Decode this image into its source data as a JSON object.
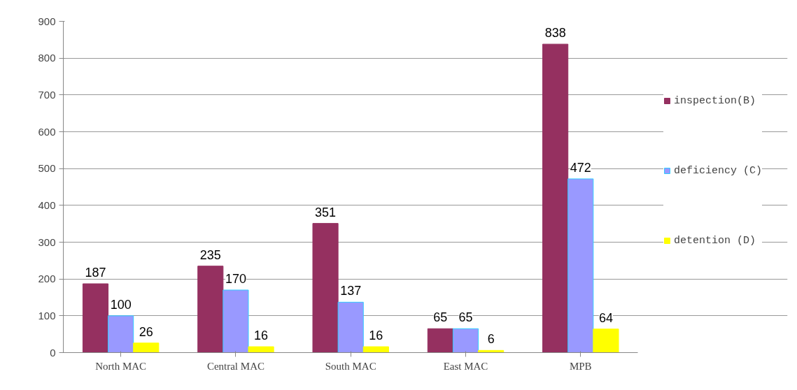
{
  "chart_data": {
    "type": "bar",
    "categories": [
      "North MAC",
      "Central MAC",
      "South MAC",
      "East MAC",
      "MPB"
    ],
    "series": [
      {
        "name": "inspection(B)",
        "color": "#953060",
        "values": [
          187,
          235,
          351,
          65,
          838
        ]
      },
      {
        "name": "deficiency (C)",
        "color": "#9999ff",
        "values": [
          100,
          170,
          137,
          65,
          472
        ]
      },
      {
        "name": "detention (D)",
        "color": "#ffff00",
        "values": [
          26,
          16,
          16,
          6,
          64
        ]
      }
    ],
    "ylim": [
      0,
      900
    ],
    "yticks": [
      0,
      100,
      200,
      300,
      400,
      500,
      600,
      700,
      800,
      900
    ],
    "grid": "y",
    "legend": "right",
    "data_labels": true
  }
}
